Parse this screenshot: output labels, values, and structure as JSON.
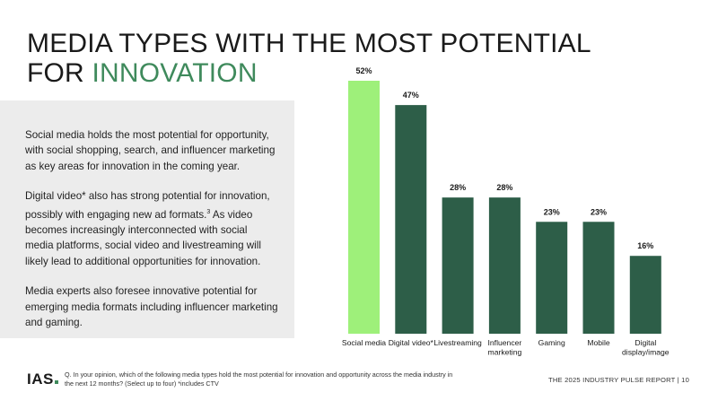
{
  "title": {
    "line1": "MEDIA TYPES WITH THE MOST POTENTIAL",
    "line2_plain": "FOR ",
    "line2_accent": "INNOVATION"
  },
  "paragraphs": {
    "p1": "Social media holds the most potential for opportunity, with social shopping, search, and influencer marketing as key areas for innovation in the coming year.",
    "p2a": "Digital video* also has strong potential for innovation, possibly with engaging new ad formats.",
    "p2sup": "3",
    "p2b": " As video becomes increasingly interconnected with social media platforms, social video and livestreaming will likely lead to additional opportunities for innovation.",
    "p3": "Media experts also foresee innovative potential for emerging media formats including influencer marketing and gaming."
  },
  "chart_data": {
    "type": "bar",
    "categories": [
      "Social media",
      "Digital video*",
      "Livestreaming",
      "Influencer marketing",
      "Gaming",
      "Mobile",
      "Digital display/image"
    ],
    "category_lines": [
      [
        "Social media"
      ],
      [
        "Digital video*"
      ],
      [
        "Livestreaming"
      ],
      [
        "Influencer",
        "marketing"
      ],
      [
        "Gaming"
      ],
      [
        "Mobile"
      ],
      [
        "Digital",
        "display/image"
      ]
    ],
    "values": [
      52,
      47,
      28,
      28,
      23,
      23,
      16
    ],
    "value_labels": [
      "52%",
      "47%",
      "28%",
      "28%",
      "23%",
      "23%",
      "16%"
    ],
    "unit": "%",
    "ylim": [
      0,
      52
    ],
    "colors": {
      "highlight": "#9ef07a",
      "default": "#2d5e48"
    },
    "highlight_index": 0
  },
  "footer": {
    "logo": "IAS",
    "note": "Q. In your opinion, which of the following media types hold the most potential for innovation and opportunity across the media industry in the next 12 months? (Select up to four) *includes CTV",
    "report": "THE 2025 INDUSTRY PULSE REPORT | 10"
  }
}
